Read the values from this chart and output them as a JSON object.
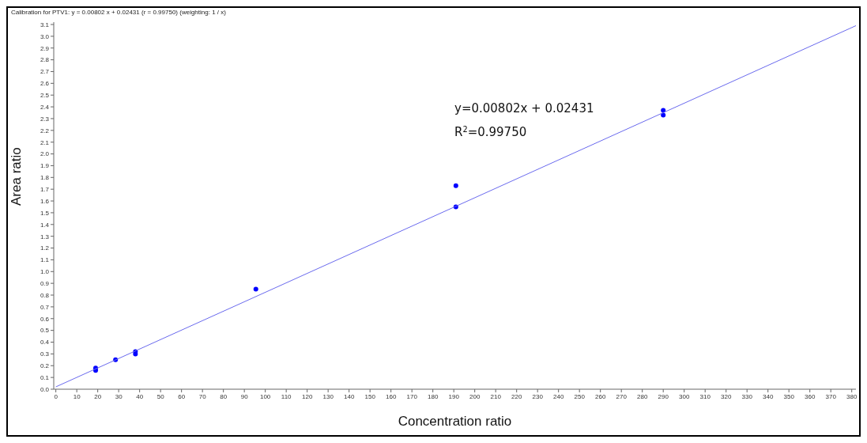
{
  "chart_data": {
    "type": "scatter",
    "title": "Calibration for PTV1: y = 0.00802 x + 0.02431 (r = 0.99750)  (weighting: 1 / x)",
    "xlabel": "Concentration  ratio",
    "ylabel": "Area ratio",
    "annotations": [
      "y=0.00802x + 0.02431",
      "R$^{2}$=0.99750"
    ],
    "series": [
      {
        "color": "#0000ff",
        "marker": "circle",
        "x": [
          19,
          19,
          28.5,
          38,
          38,
          95.5,
          191,
          191,
          290,
          290
        ],
        "values": [
          0.16,
          0.18,
          0.25,
          0.3,
          0.32,
          0.85,
          1.73,
          1.55,
          2.37,
          2.33
        ]
      },
      {
        "type": "line",
        "color": "#6a6aee",
        "marker": "none",
        "x": [
          0,
          382
        ],
        "values": [
          0.02,
          3.09
        ]
      }
    ],
    "xlim": [
      -1,
      382
    ],
    "xticks": [
      0,
      10,
      20,
      30,
      40,
      50,
      60,
      70,
      80,
      90,
      100,
      110,
      120,
      130,
      140,
      150,
      160,
      170,
      180,
      190,
      200,
      210,
      220,
      230,
      240,
      250,
      260,
      270,
      280,
      290,
      300,
      310,
      320,
      330,
      340,
      350,
      360,
      370,
      380
    ],
    "ylim": [
      0,
      3.12
    ],
    "yticks": [
      {
        "value": 0,
        "label": "0.0"
      },
      {
        "value": 0.1,
        "label": "0.1"
      },
      {
        "value": 0.2,
        "label": "0.2"
      },
      {
        "value": 0.3,
        "label": "0.3"
      },
      {
        "value": 0.4,
        "label": "0.4"
      },
      {
        "value": 0.5,
        "label": "0.5"
      },
      {
        "value": 0.6,
        "label": "0.6"
      },
      {
        "value": 0.7,
        "label": "0.7"
      },
      {
        "value": 0.8,
        "label": "0.8"
      },
      {
        "value": 0.9,
        "label": "0.9"
      },
      {
        "value": 1,
        "label": "1.0"
      },
      {
        "value": 1.1,
        "label": "1.1"
      },
      {
        "value": 1.2,
        "label": "1.2"
      },
      {
        "value": 1.3,
        "label": "1.3"
      },
      {
        "value": 1.4,
        "label": "1.4"
      },
      {
        "value": 1.5,
        "label": "1.5"
      },
      {
        "value": 1.6,
        "label": "1.6"
      },
      {
        "value": 1.7,
        "label": "1.7"
      },
      {
        "value": 1.8,
        "label": "1.8"
      },
      {
        "value": 1.9,
        "label": "1.9"
      },
      {
        "value": 2,
        "label": "2.0"
      },
      {
        "value": 2.1,
        "label": "2.1"
      },
      {
        "value": 2.2,
        "label": "2.2"
      },
      {
        "value": 2.3,
        "label": "2.3"
      },
      {
        "value": 2.4,
        "label": "2.4"
      },
      {
        "value": 2.5,
        "label": "2.5"
      },
      {
        "value": 2.6,
        "label": "2.6"
      },
      {
        "value": 2.7,
        "label": "2.7"
      },
      {
        "value": 2.8,
        "label": "2.8"
      },
      {
        "value": 2.9,
        "label": "2.9"
      },
      {
        "value": 3,
        "label": "3.0"
      },
      {
        "value": 3.1,
        "label": "3.1"
      }
    ],
    "grid": false,
    "legend": false
  }
}
